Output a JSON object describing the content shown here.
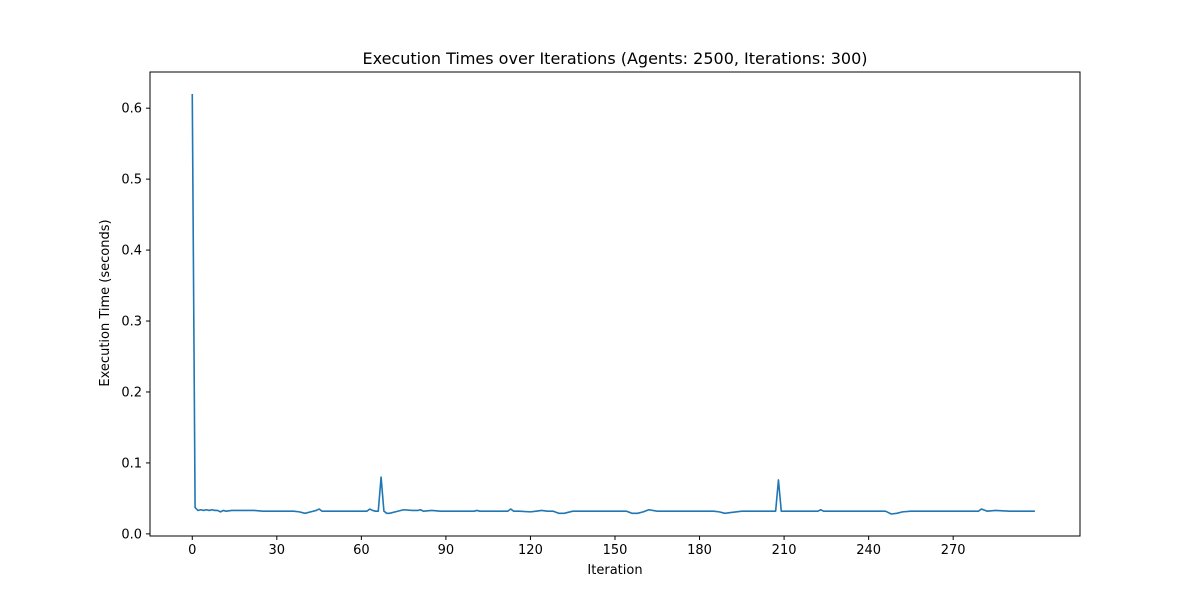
{
  "chart_data": {
    "type": "line",
    "title": "Execution Times over Iterations (Agents: 2500, Iterations: 300)",
    "xlabel": "Iteration",
    "ylabel": "Execution Time (seconds)",
    "xlim": [
      -15,
      315
    ],
    "ylim": [
      -0.003,
      0.651
    ],
    "xticks": [
      0,
      30,
      60,
      90,
      120,
      150,
      180,
      210,
      240,
      270
    ],
    "yticks": [
      0.0,
      0.1,
      0.2,
      0.3,
      0.4,
      0.5,
      0.6
    ],
    "ytick_labels": [
      "0.0",
      "0.1",
      "0.2",
      "0.3",
      "0.4",
      "0.5",
      "0.6"
    ],
    "grid": false,
    "series": [
      {
        "color": "#1f77b4",
        "x": [
          0,
          1,
          2,
          3,
          4,
          5,
          6,
          7,
          8,
          9,
          10,
          11,
          12,
          14,
          16,
          18,
          20,
          22,
          25,
          28,
          30,
          33,
          36,
          38,
          40,
          42,
          44,
          45,
          46,
          48,
          50,
          55,
          60,
          62,
          63,
          64,
          65,
          66,
          67,
          68,
          69,
          70,
          72,
          75,
          78,
          80,
          81,
          82,
          85,
          88,
          90,
          92,
          95,
          98,
          100,
          101,
          102,
          105,
          108,
          110,
          112,
          113,
          114,
          116,
          120,
          122,
          124,
          126,
          128,
          130,
          132,
          135,
          140,
          145,
          150,
          154,
          156,
          158,
          160,
          162,
          165,
          170,
          175,
          180,
          185,
          187,
          189,
          191,
          195,
          200,
          205,
          206,
          207,
          208,
          209,
          210,
          212,
          215,
          220,
          222,
          223,
          224,
          228,
          232,
          238,
          240,
          244,
          246,
          247,
          248,
          250,
          252,
          255,
          260,
          265,
          270,
          275,
          278,
          279,
          280,
          282,
          285,
          290,
          295,
          299
        ],
        "values": [
          0.62,
          0.037,
          0.033,
          0.034,
          0.033,
          0.034,
          0.033,
          0.034,
          0.033,
          0.033,
          0.031,
          0.033,
          0.032,
          0.033,
          0.033,
          0.033,
          0.033,
          0.033,
          0.032,
          0.032,
          0.032,
          0.032,
          0.032,
          0.031,
          0.029,
          0.031,
          0.033,
          0.035,
          0.032,
          0.032,
          0.032,
          0.032,
          0.032,
          0.032,
          0.035,
          0.033,
          0.032,
          0.032,
          0.08,
          0.032,
          0.029,
          0.029,
          0.031,
          0.034,
          0.033,
          0.033,
          0.034,
          0.032,
          0.033,
          0.032,
          0.032,
          0.032,
          0.032,
          0.032,
          0.032,
          0.033,
          0.032,
          0.032,
          0.032,
          0.032,
          0.032,
          0.035,
          0.032,
          0.032,
          0.031,
          0.032,
          0.033,
          0.032,
          0.032,
          0.029,
          0.029,
          0.032,
          0.032,
          0.032,
          0.032,
          0.032,
          0.029,
          0.029,
          0.031,
          0.034,
          0.032,
          0.032,
          0.032,
          0.032,
          0.032,
          0.031,
          0.029,
          0.03,
          0.032,
          0.032,
          0.032,
          0.032,
          0.032,
          0.076,
          0.032,
          0.032,
          0.032,
          0.032,
          0.032,
          0.032,
          0.034,
          0.032,
          0.032,
          0.032,
          0.032,
          0.032,
          0.032,
          0.032,
          0.03,
          0.028,
          0.029,
          0.031,
          0.032,
          0.032,
          0.032,
          0.032,
          0.032,
          0.032,
          0.032,
          0.035,
          0.032,
          0.033,
          0.032,
          0.032,
          0.032
        ]
      }
    ]
  }
}
